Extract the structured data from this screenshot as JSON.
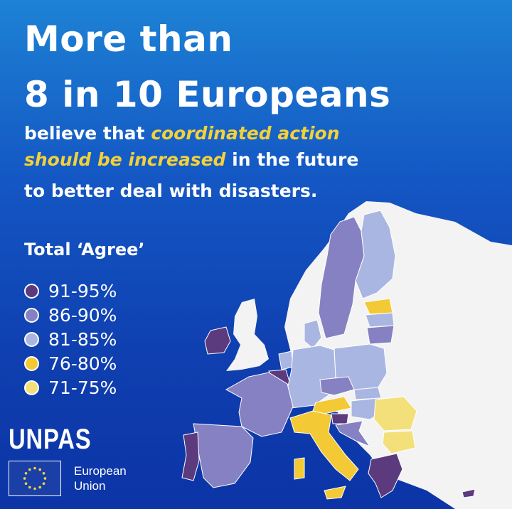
{
  "headline": {
    "line1": "More than",
    "line2": "8 in 10 Europeans"
  },
  "subtitle": {
    "part1": "believe that ",
    "highlight1": "coordinated action",
    "highlight2": "should be increased",
    "part2": " in the future",
    "line3": "to better deal with disasters."
  },
  "legend": {
    "title": "Total ‘Agree’",
    "items": [
      {
        "label": "91-95%",
        "color": "#5b3a7e"
      },
      {
        "label": "86-90%",
        "color": "#8581c2"
      },
      {
        "label": "81-85%",
        "color": "#aab6e2"
      },
      {
        "label": "76-80%",
        "color": "#f3c935"
      },
      {
        "label": "71-75%",
        "color": "#f3e07a"
      }
    ]
  },
  "colors": {
    "background_top": "#1d82d4",
    "background_bottom": "#0c34a6",
    "highlight": "#f3d13b",
    "non_eu_land": "#f3f3f3"
  },
  "map": {
    "type": "choropleth",
    "region": "Europe",
    "countries": [
      {
        "name": "Ireland",
        "bin": "91-95%"
      },
      {
        "name": "Belgium",
        "bin": "91-95%"
      },
      {
        "name": "Portugal",
        "bin": "91-95%"
      },
      {
        "name": "Greece",
        "bin": "91-95%"
      },
      {
        "name": "Cyprus",
        "bin": "91-95%"
      },
      {
        "name": "Slovenia",
        "bin": "91-95%"
      },
      {
        "name": "Sweden",
        "bin": "86-90%"
      },
      {
        "name": "France",
        "bin": "86-90%"
      },
      {
        "name": "Spain",
        "bin": "86-90%"
      },
      {
        "name": "Czechia",
        "bin": "86-90%"
      },
      {
        "name": "Lithuania",
        "bin": "86-90%"
      },
      {
        "name": "Croatia",
        "bin": "86-90%"
      },
      {
        "name": "Finland",
        "bin": "81-85%"
      },
      {
        "name": "Germany",
        "bin": "81-85%"
      },
      {
        "name": "Poland",
        "bin": "81-85%"
      },
      {
        "name": "Netherlands",
        "bin": "81-85%"
      },
      {
        "name": "Denmark",
        "bin": "81-85%"
      },
      {
        "name": "Latvia",
        "bin": "81-85%"
      },
      {
        "name": "Slovakia",
        "bin": "81-85%"
      },
      {
        "name": "Hungary",
        "bin": "81-85%"
      },
      {
        "name": "Italy",
        "bin": "76-80%"
      },
      {
        "name": "Austria",
        "bin": "76-80%"
      },
      {
        "name": "Estonia",
        "bin": "76-80%"
      },
      {
        "name": "Romania",
        "bin": "71-75%"
      },
      {
        "name": "Bulgaria",
        "bin": "71-75%"
      }
    ]
  },
  "branding": {
    "unpas": "UNPAS",
    "eu_line1": "European",
    "eu_line2": "Union"
  }
}
